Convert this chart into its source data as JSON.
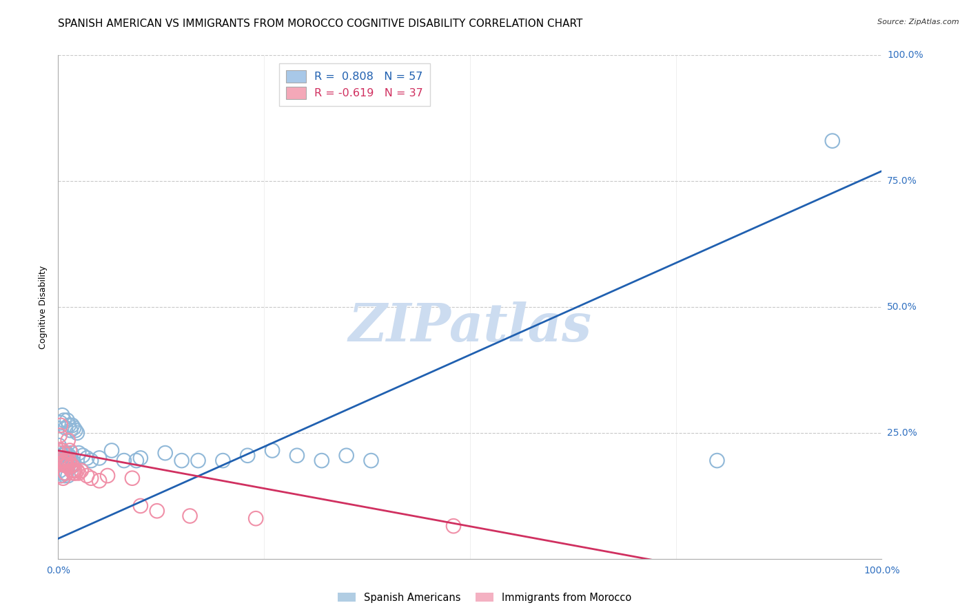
{
  "title": "SPANISH AMERICAN VS IMMIGRANTS FROM MOROCCO COGNITIVE DISABILITY CORRELATION CHART",
  "source": "Source: ZipAtlas.com",
  "ylabel": "Cognitive Disability",
  "xlim": [
    0,
    1
  ],
  "ylim": [
    0,
    1
  ],
  "xticks": [
    0,
    0.25,
    0.5,
    0.75,
    1.0
  ],
  "yticks": [
    0,
    0.25,
    0.5,
    0.75,
    1.0
  ],
  "xticklabels": [
    "0.0%",
    "",
    "",
    "",
    "100.0%"
  ],
  "yticklabels": [
    "",
    "25.0%",
    "50.0%",
    "75.0%",
    "100.0%"
  ],
  "watermark": "ZIPatlas",
  "legend_entries": [
    {
      "label": "R =  0.808   N = 57",
      "color": "#a8c8e8"
    },
    {
      "label": "R = -0.619   N = 37",
      "color": "#f4a8b8"
    }
  ],
  "series1_color": "#90b8d8",
  "series2_color": "#f090a8",
  "series1_line_color": "#2060b0",
  "series2_line_color": "#d03060",
  "blue_points": [
    [
      0.001,
      0.225
    ],
    [
      0.002,
      0.21
    ],
    [
      0.003,
      0.19
    ],
    [
      0.004,
      0.2
    ],
    [
      0.005,
      0.215
    ],
    [
      0.006,
      0.205
    ],
    [
      0.007,
      0.195
    ],
    [
      0.008,
      0.21
    ],
    [
      0.009,
      0.2
    ],
    [
      0.01,
      0.21
    ],
    [
      0.011,
      0.195
    ],
    [
      0.012,
      0.185
    ],
    [
      0.013,
      0.205
    ],
    [
      0.014,
      0.19
    ],
    [
      0.015,
      0.2
    ],
    [
      0.016,
      0.21
    ],
    [
      0.017,
      0.195
    ],
    [
      0.018,
      0.185
    ],
    [
      0.019,
      0.19
    ],
    [
      0.003,
      0.27
    ],
    [
      0.005,
      0.285
    ],
    [
      0.007,
      0.275
    ],
    [
      0.009,
      0.26
    ],
    [
      0.011,
      0.275
    ],
    [
      0.013,
      0.265
    ],
    [
      0.015,
      0.255
    ],
    [
      0.017,
      0.265
    ],
    [
      0.019,
      0.26
    ],
    [
      0.021,
      0.255
    ],
    [
      0.023,
      0.25
    ],
    [
      0.002,
      0.175
    ],
    [
      0.004,
      0.165
    ],
    [
      0.006,
      0.17
    ],
    [
      0.008,
      0.165
    ],
    [
      0.01,
      0.17
    ],
    [
      0.012,
      0.165
    ],
    [
      0.025,
      0.21
    ],
    [
      0.03,
      0.205
    ],
    [
      0.035,
      0.2
    ],
    [
      0.04,
      0.195
    ],
    [
      0.05,
      0.2
    ],
    [
      0.065,
      0.215
    ],
    [
      0.08,
      0.195
    ],
    [
      0.095,
      0.195
    ],
    [
      0.1,
      0.2
    ],
    [
      0.13,
      0.21
    ],
    [
      0.15,
      0.195
    ],
    [
      0.17,
      0.195
    ],
    [
      0.2,
      0.195
    ],
    [
      0.23,
      0.205
    ],
    [
      0.26,
      0.215
    ],
    [
      0.29,
      0.205
    ],
    [
      0.32,
      0.195
    ],
    [
      0.35,
      0.205
    ],
    [
      0.38,
      0.195
    ],
    [
      0.8,
      0.195
    ],
    [
      0.94,
      0.83
    ]
  ],
  "pink_points": [
    [
      0.001,
      0.21
    ],
    [
      0.002,
      0.245
    ],
    [
      0.003,
      0.265
    ],
    [
      0.004,
      0.195
    ],
    [
      0.005,
      0.215
    ],
    [
      0.006,
      0.2
    ],
    [
      0.007,
      0.19
    ],
    [
      0.008,
      0.195
    ],
    [
      0.009,
      0.185
    ],
    [
      0.01,
      0.195
    ],
    [
      0.011,
      0.185
    ],
    [
      0.012,
      0.235
    ],
    [
      0.013,
      0.195
    ],
    [
      0.014,
      0.215
    ],
    [
      0.015,
      0.185
    ],
    [
      0.016,
      0.175
    ],
    [
      0.017,
      0.185
    ],
    [
      0.018,
      0.175
    ],
    [
      0.019,
      0.17
    ],
    [
      0.02,
      0.175
    ],
    [
      0.021,
      0.17
    ],
    [
      0.023,
      0.175
    ],
    [
      0.025,
      0.17
    ],
    [
      0.028,
      0.175
    ],
    [
      0.003,
      0.165
    ],
    [
      0.006,
      0.16
    ],
    [
      0.009,
      0.17
    ],
    [
      0.035,
      0.165
    ],
    [
      0.04,
      0.16
    ],
    [
      0.05,
      0.155
    ],
    [
      0.06,
      0.165
    ],
    [
      0.09,
      0.16
    ],
    [
      0.1,
      0.105
    ],
    [
      0.12,
      0.095
    ],
    [
      0.16,
      0.085
    ],
    [
      0.24,
      0.08
    ],
    [
      0.48,
      0.065
    ]
  ],
  "blue_line": {
    "x_start": 0.0,
    "y_start": 0.04,
    "x_end": 1.0,
    "y_end": 0.77
  },
  "pink_line": {
    "x_start": 0.0,
    "y_start": 0.215,
    "x_end": 0.78,
    "y_end": -0.02
  },
  "background_color": "#ffffff",
  "grid_color": "#c8c8c8",
  "title_fontsize": 11,
  "axis_label_fontsize": 9,
  "tick_fontsize": 10,
  "tick_color": "#3070c0",
  "watermark_color": "#ccdcf0",
  "watermark_fontsize": 55
}
